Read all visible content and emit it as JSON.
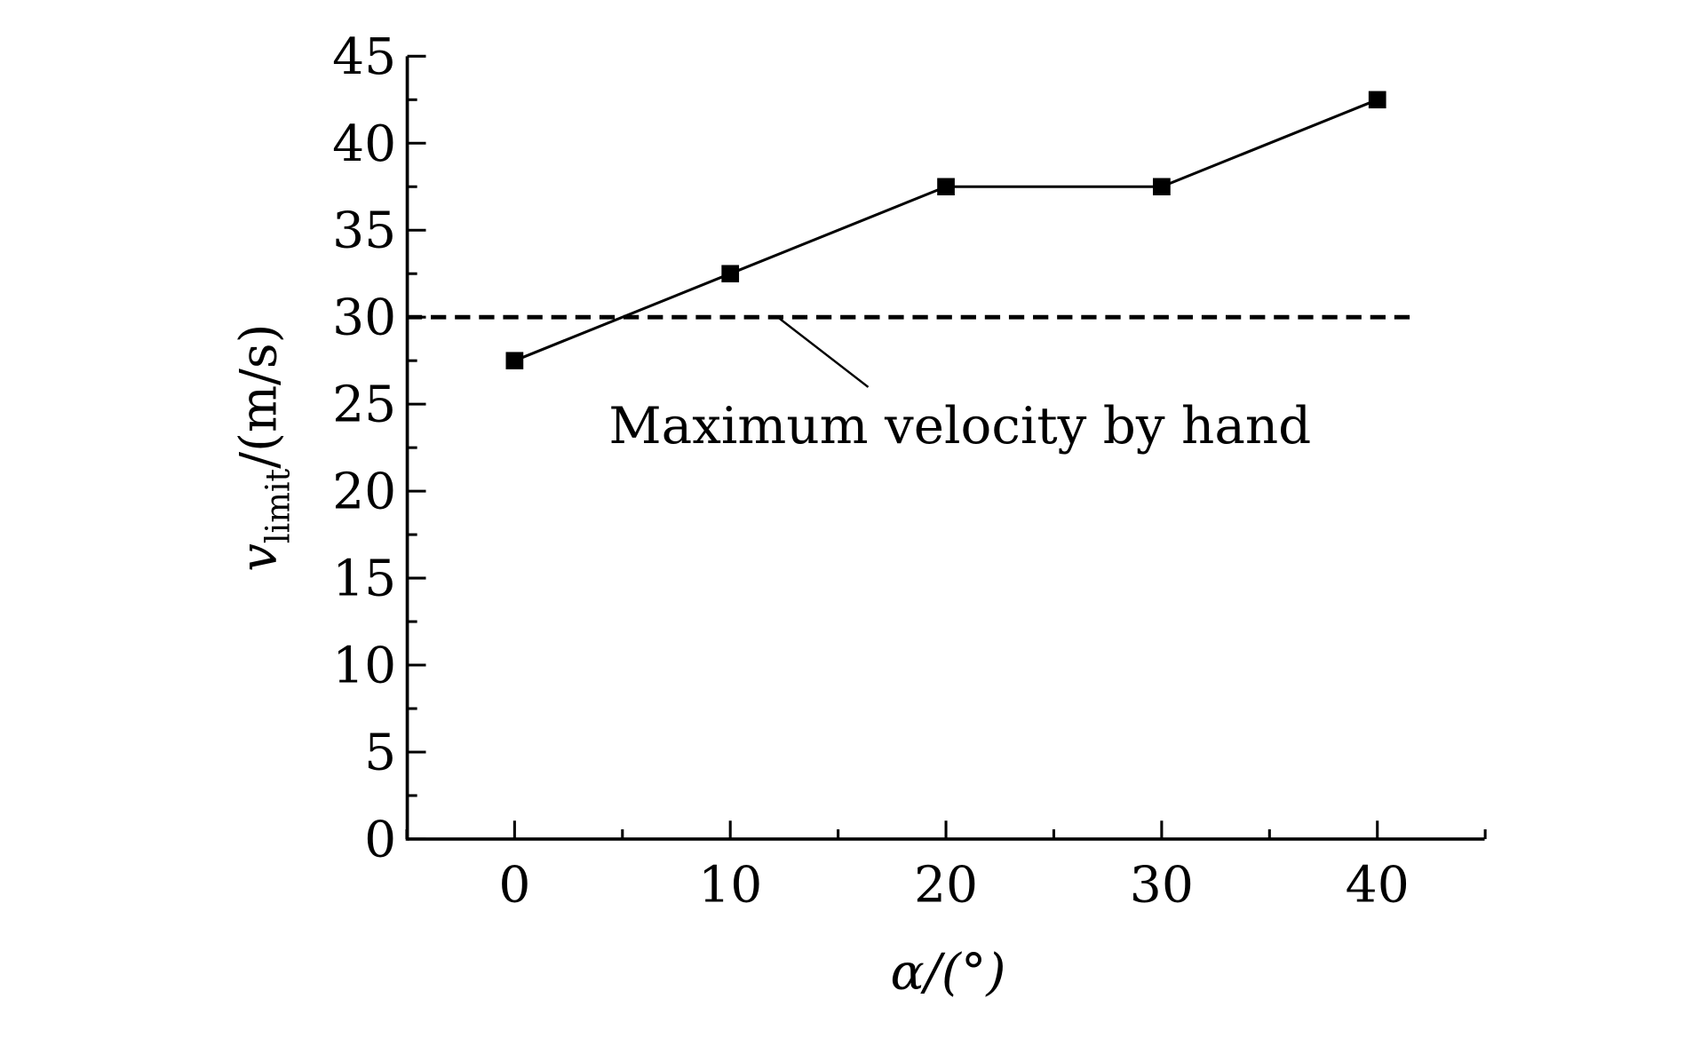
{
  "chart_data": {
    "type": "line",
    "title": "",
    "xlabel": "α/(°)",
    "ylabel_main": "v",
    "ylabel_sub": "limit",
    "ylabel_rest": "/(m/s)",
    "xlim": [
      -5,
      45
    ],
    "ylim": [
      0,
      45
    ],
    "x_ticks": [
      0,
      10,
      20,
      30,
      40
    ],
    "x_tick_labels": [
      "0",
      "10",
      "20",
      "30",
      "40"
    ],
    "y_ticks": [
      0,
      5,
      10,
      15,
      20,
      25,
      30,
      35,
      40,
      45
    ],
    "y_tick_labels": [
      "0",
      "5",
      "10",
      "15",
      "20",
      "25",
      "30",
      "35",
      "40",
      "45"
    ],
    "grid": false,
    "series": [
      {
        "name": "v_limit",
        "marker": "square",
        "x": [
          0,
          10,
          20,
          30,
          40
        ],
        "values": [
          27.5,
          32.5,
          37.5,
          37.5,
          42.5
        ]
      }
    ],
    "reference_line": {
      "y": 30,
      "x_range": [
        -5,
        41.5
      ],
      "style": "dashed"
    },
    "annotation": {
      "text": "Maximum velocity by hand",
      "points_to": [
        12.2,
        30
      ]
    },
    "colors": {
      "line": "#000000",
      "marker": "#000000"
    }
  }
}
